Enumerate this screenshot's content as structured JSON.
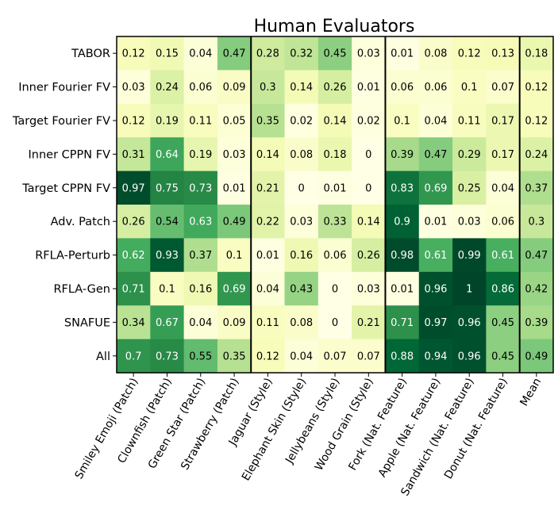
{
  "chart_data": {
    "type": "heatmap",
    "title": "Human Evaluators",
    "rows": [
      "TABOR",
      "Inner Fourier FV",
      "Target Fourier FV",
      "Inner CPPN FV",
      "Target CPPN FV",
      "Adv. Patch",
      "RFLA-Perturb",
      "RFLA-Gen",
      "SNAFUE",
      "All"
    ],
    "columns": [
      "Smiley Emoji (Patch)",
      "Clownfish (Patch)",
      "Green Star (Patch)",
      "Strawberry (Patch)",
      "Jaguar (Style)",
      "Elephant Skin (Style)",
      "Jellybeans (Style)",
      "Wood Grain (Style)",
      "Fork (Nat. Feature)",
      "Apple (Nat. Feature)",
      "Sandwich (Nat. Feature)",
      "Donut (Nat. Feature)",
      "Mean"
    ],
    "values": [
      [
        0.12,
        0.15,
        0.04,
        0.47,
        0.28,
        0.32,
        0.45,
        0.03,
        0.01,
        0.08,
        0.12,
        0.13,
        0.18
      ],
      [
        0.03,
        0.24,
        0.06,
        0.09,
        0.3,
        0.14,
        0.26,
        0.01,
        0.06,
        0.06,
        0.1,
        0.07,
        0.12
      ],
      [
        0.12,
        0.19,
        0.11,
        0.05,
        0.35,
        0.02,
        0.14,
        0.02,
        0.1,
        0.04,
        0.11,
        0.17,
        0.12
      ],
      [
        0.31,
        0.64,
        0.19,
        0.03,
        0.14,
        0.08,
        0.18,
        0.0,
        0.39,
        0.47,
        0.29,
        0.17,
        0.24
      ],
      [
        0.97,
        0.75,
        0.73,
        0.01,
        0.21,
        0.0,
        0.01,
        0.0,
        0.83,
        0.69,
        0.25,
        0.04,
        0.37
      ],
      [
        0.26,
        0.54,
        0.63,
        0.49,
        0.22,
        0.03,
        0.33,
        0.14,
        0.9,
        0.01,
        0.03,
        0.06,
        0.3
      ],
      [
        0.62,
        0.93,
        0.37,
        0.1,
        0.01,
        0.16,
        0.06,
        0.26,
        0.98,
        0.61,
        0.99,
        0.61,
        0.47
      ],
      [
        0.71,
        0.1,
        0.16,
        0.69,
        0.04,
        0.43,
        0.0,
        0.03,
        0.01,
        0.96,
        1.0,
        0.86,
        0.42
      ],
      [
        0.34,
        0.67,
        0.04,
        0.09,
        0.11,
        0.08,
        0.0,
        0.21,
        0.71,
        0.97,
        0.96,
        0.45,
        0.39
      ],
      [
        0.7,
        0.73,
        0.55,
        0.35,
        0.12,
        0.04,
        0.07,
        0.07,
        0.88,
        0.94,
        0.96,
        0.45,
        0.49
      ]
    ],
    "value_range": [
      0,
      1
    ],
    "colormap": "YlGn",
    "group_separators_after_columns": [
      4,
      8,
      12
    ],
    "text_color_threshold": 0.6,
    "text_colors": {
      "light": "#ffffff",
      "dark": "#000000"
    }
  }
}
